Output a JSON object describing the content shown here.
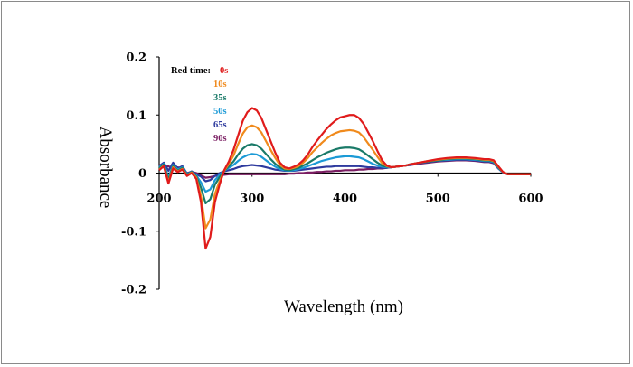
{
  "chart_data": {
    "type": "line",
    "title": "",
    "xlabel": "Wavelength (nm)",
    "ylabel": "Absorbance",
    "xlim": [
      200,
      600
    ],
    "ylim": [
      -0.2,
      0.2
    ],
    "xticks": [
      200,
      300,
      400,
      500,
      600
    ],
    "yticks": [
      0.2,
      0.1,
      0,
      -0.1,
      -0.2
    ],
    "ytick_labels": [
      "0.2",
      "0.1",
      "0",
      "-0.1",
      "-0.2"
    ],
    "legend_title": "Red time:",
    "legend_position": "top-left",
    "series": [
      {
        "name": "0s",
        "color": "#e01b1b",
        "x": [
          200,
          205,
          210,
          215,
          220,
          225,
          230,
          235,
          240,
          245,
          250,
          255,
          260,
          265,
          270,
          275,
          280,
          285,
          290,
          295,
          300,
          305,
          310,
          315,
          320,
          325,
          330,
          335,
          340,
          345,
          350,
          355,
          360,
          365,
          370,
          375,
          380,
          385,
          390,
          395,
          400,
          405,
          410,
          415,
          420,
          425,
          430,
          435,
          440,
          445,
          450,
          455,
          460,
          465,
          470,
          480,
          490,
          500,
          510,
          520,
          530,
          540,
          550,
          555,
          560,
          565,
          570,
          575,
          580,
          590,
          600
        ],
        "y": [
          0.005,
          0.012,
          -0.018,
          0.008,
          0.002,
          0.006,
          -0.005,
          0,
          -0.01,
          -0.05,
          -0.13,
          -0.11,
          -0.05,
          -0.02,
          0.005,
          0.02,
          0.04,
          0.065,
          0.09,
          0.105,
          0.112,
          0.108,
          0.095,
          0.075,
          0.055,
          0.035,
          0.018,
          0.01,
          0.008,
          0.011,
          0.015,
          0.022,
          0.032,
          0.045,
          0.056,
          0.066,
          0.076,
          0.084,
          0.091,
          0.096,
          0.098,
          0.1,
          0.1,
          0.095,
          0.085,
          0.07,
          0.055,
          0.038,
          0.022,
          0.013,
          0.01,
          0.011,
          0.012,
          0.013,
          0.015,
          0.018,
          0.021,
          0.024,
          0.026,
          0.027,
          0.027,
          0.026,
          0.024,
          0.024,
          0.022,
          0.012,
          0.002,
          -0.002,
          -0.002,
          -0.002,
          -0.002
        ]
      },
      {
        "name": "10s",
        "color": "#f08a1c",
        "x": [
          200,
          205,
          210,
          215,
          220,
          225,
          230,
          235,
          240,
          245,
          250,
          255,
          260,
          265,
          270,
          275,
          280,
          285,
          290,
          295,
          300,
          305,
          310,
          315,
          320,
          325,
          330,
          335,
          340,
          345,
          350,
          355,
          360,
          365,
          370,
          375,
          380,
          385,
          390,
          395,
          400,
          405,
          410,
          415,
          420,
          425,
          430,
          435,
          440,
          445,
          450,
          455,
          460,
          465,
          470,
          480,
          490,
          500,
          510,
          520,
          530,
          540,
          550,
          555,
          560,
          565,
          570,
          575,
          580,
          590,
          600
        ],
        "y": [
          0.006,
          0.013,
          -0.016,
          0.01,
          0.003,
          0.007,
          -0.004,
          0.001,
          -0.008,
          -0.04,
          -0.095,
          -0.08,
          -0.036,
          -0.014,
          0.004,
          0.016,
          0.03,
          0.05,
          0.068,
          0.079,
          0.082,
          0.079,
          0.07,
          0.055,
          0.04,
          0.026,
          0.014,
          0.008,
          0.007,
          0.009,
          0.012,
          0.018,
          0.026,
          0.036,
          0.044,
          0.052,
          0.059,
          0.065,
          0.069,
          0.072,
          0.073,
          0.074,
          0.073,
          0.07,
          0.062,
          0.051,
          0.04,
          0.028,
          0.017,
          0.012,
          0.01,
          0.011,
          0.012,
          0.013,
          0.015,
          0.018,
          0.021,
          0.023,
          0.025,
          0.026,
          0.026,
          0.025,
          0.023,
          0.023,
          0.021,
          0.011,
          0.002,
          -0.002,
          -0.002,
          -0.002,
          -0.002
        ]
      },
      {
        "name": "35s",
        "color": "#1a7a68",
        "x": [
          200,
          205,
          210,
          215,
          220,
          225,
          230,
          235,
          240,
          245,
          250,
          255,
          260,
          265,
          270,
          275,
          280,
          285,
          290,
          295,
          300,
          305,
          310,
          315,
          320,
          325,
          330,
          335,
          340,
          345,
          350,
          355,
          360,
          365,
          370,
          375,
          380,
          385,
          390,
          395,
          400,
          405,
          410,
          415,
          420,
          425,
          430,
          435,
          440,
          445,
          450,
          455,
          460,
          465,
          470,
          480,
          490,
          500,
          510,
          520,
          530,
          540,
          550,
          555,
          560,
          565,
          570,
          575,
          580,
          590,
          600
        ],
        "y": [
          0.008,
          0.015,
          -0.012,
          0.012,
          0.004,
          0.009,
          -0.003,
          0.002,
          -0.006,
          -0.025,
          -0.052,
          -0.045,
          -0.02,
          -0.007,
          0.004,
          0.012,
          0.02,
          0.032,
          0.042,
          0.048,
          0.05,
          0.048,
          0.042,
          0.033,
          0.024,
          0.016,
          0.01,
          0.006,
          0.005,
          0.007,
          0.009,
          0.013,
          0.017,
          0.022,
          0.027,
          0.031,
          0.035,
          0.038,
          0.041,
          0.043,
          0.044,
          0.044,
          0.043,
          0.041,
          0.036,
          0.03,
          0.024,
          0.018,
          0.013,
          0.011,
          0.01,
          0.011,
          0.012,
          0.013,
          0.015,
          0.018,
          0.02,
          0.022,
          0.024,
          0.025,
          0.025,
          0.024,
          0.022,
          0.022,
          0.02,
          0.01,
          0.002,
          -0.002,
          -0.002,
          -0.002,
          -0.002
        ]
      },
      {
        "name": "50s",
        "color": "#1b9ad6",
        "x": [
          200,
          205,
          210,
          215,
          220,
          225,
          230,
          235,
          240,
          245,
          250,
          255,
          260,
          265,
          270,
          275,
          280,
          285,
          290,
          295,
          300,
          305,
          310,
          315,
          320,
          325,
          330,
          335,
          340,
          345,
          350,
          355,
          360,
          365,
          370,
          375,
          380,
          385,
          390,
          395,
          400,
          405,
          410,
          415,
          420,
          425,
          430,
          435,
          440,
          445,
          450,
          455,
          460,
          465,
          470,
          480,
          490,
          500,
          510,
          520,
          530,
          540,
          550,
          555,
          560,
          565,
          570,
          575,
          580,
          590,
          600
        ],
        "y": [
          0.01,
          0.016,
          -0.008,
          0.014,
          0.006,
          0.01,
          -0.002,
          0.002,
          -0.004,
          -0.016,
          -0.032,
          -0.028,
          -0.012,
          -0.003,
          0.004,
          0.009,
          0.014,
          0.021,
          0.027,
          0.031,
          0.033,
          0.032,
          0.028,
          0.022,
          0.016,
          0.011,
          0.007,
          0.005,
          0.004,
          0.005,
          0.007,
          0.009,
          0.012,
          0.015,
          0.018,
          0.021,
          0.023,
          0.025,
          0.027,
          0.028,
          0.029,
          0.029,
          0.028,
          0.027,
          0.024,
          0.02,
          0.016,
          0.013,
          0.011,
          0.01,
          0.01,
          0.011,
          0.012,
          0.013,
          0.015,
          0.018,
          0.02,
          0.022,
          0.023,
          0.024,
          0.024,
          0.023,
          0.021,
          0.021,
          0.019,
          0.009,
          0.001,
          -0.002,
          -0.002,
          -0.002,
          -0.002
        ]
      },
      {
        "name": "65s",
        "color": "#2e3a9e",
        "x": [
          200,
          205,
          210,
          215,
          220,
          225,
          230,
          235,
          240,
          245,
          250,
          255,
          260,
          265,
          270,
          275,
          280,
          285,
          290,
          295,
          300,
          305,
          310,
          315,
          320,
          325,
          330,
          335,
          340,
          345,
          350,
          355,
          360,
          365,
          370,
          375,
          380,
          385,
          390,
          395,
          400,
          405,
          410,
          415,
          420,
          425,
          430,
          435,
          440,
          445,
          450,
          455,
          460,
          465,
          470,
          480,
          490,
          500,
          510,
          520,
          530,
          540,
          550,
          555,
          560,
          565,
          570,
          575,
          580,
          590,
          600
        ],
        "y": [
          0.012,
          0.018,
          0.004,
          0.018,
          0.008,
          0.012,
          -0.001,
          0.003,
          -0.002,
          -0.006,
          -0.014,
          -0.012,
          -0.005,
          0,
          0.003,
          0.005,
          0.007,
          0.01,
          0.012,
          0.013,
          0.014,
          0.013,
          0.012,
          0.01,
          0.008,
          0.006,
          0.005,
          0.004,
          0.004,
          0.004,
          0.005,
          0.006,
          0.007,
          0.008,
          0.009,
          0.01,
          0.011,
          0.011,
          0.012,
          0.012,
          0.012,
          0.012,
          0.012,
          0.012,
          0.011,
          0.01,
          0.01,
          0.009,
          0.009,
          0.009,
          0.01,
          0.011,
          0.012,
          0.013,
          0.014,
          0.017,
          0.019,
          0.021,
          0.022,
          0.023,
          0.023,
          0.022,
          0.02,
          0.02,
          0.018,
          0.008,
          0.001,
          -0.002,
          -0.002,
          -0.002,
          -0.002
        ]
      },
      {
        "name": "90s",
        "color": "#7a1d62",
        "x": [
          200,
          205,
          210,
          215,
          220,
          225,
          230,
          235,
          240,
          245,
          250,
          255,
          260,
          265,
          270,
          275,
          280,
          285,
          290,
          295,
          300,
          305,
          310,
          315,
          320,
          325,
          330,
          335,
          340,
          345,
          350,
          355,
          360,
          365,
          370,
          375,
          380,
          385,
          390,
          395,
          400,
          405,
          410,
          415,
          420,
          425,
          430,
          435,
          440,
          445,
          450,
          455,
          460,
          465,
          470,
          480,
          490,
          500,
          510,
          520,
          530,
          540,
          550,
          555,
          560,
          565,
          570,
          575,
          580,
          590,
          600
        ],
        "y": [
          0.014,
          0.01,
          0.012,
          0.006,
          0.01,
          0.008,
          0,
          0.002,
          0,
          -0.004,
          -0.008,
          -0.007,
          -0.005,
          -0.004,
          -0.003,
          -0.002,
          -0.002,
          -0.002,
          -0.002,
          -0.002,
          -0.002,
          -0.002,
          -0.002,
          -0.002,
          -0.002,
          -0.002,
          -0.002,
          -0.002,
          -0.001,
          -0.001,
          0,
          0,
          0.001,
          0.001,
          0.002,
          0.002,
          0.003,
          0.003,
          0.004,
          0.004,
          0.005,
          0.005,
          0.005,
          0.006,
          0.006,
          0.007,
          0.007,
          0.008,
          0.008,
          0.009,
          0.01,
          0.011,
          0.012,
          0.013,
          0.014,
          0.016,
          0.018,
          0.02,
          0.021,
          0.022,
          0.022,
          0.021,
          0.019,
          0.019,
          0.017,
          0.008,
          0.001,
          -0.002,
          -0.002,
          -0.002,
          -0.002
        ]
      }
    ]
  }
}
